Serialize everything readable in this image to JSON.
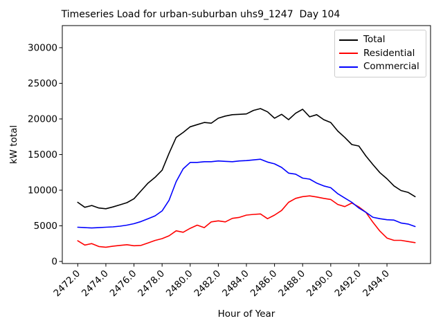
{
  "title": "Timeseries Load for urban-suburban uhs9_1247  Day 104",
  "axes": {
    "xlabel": "Hour of Year",
    "ylabel": "kW total"
  },
  "legend": {
    "entries": [
      {
        "label": "Total",
        "color": "#000000"
      },
      {
        "label": "Residential",
        "color": "#ff0000"
      },
      {
        "label": "Commercial",
        "color": "#0000ff"
      }
    ]
  },
  "chart_data": {
    "type": "line",
    "title": "Timeseries Load for urban-suburban uhs9_1247  Day 104",
    "xlabel": "Hour of Year",
    "ylabel": "kW total",
    "xlim": [
      2470.9,
      2497.1
    ],
    "ylim": [
      0,
      33100
    ],
    "grid": false,
    "legend_position": "upper right",
    "x_ticks": [
      2472,
      2474,
      2476,
      2478,
      2480,
      2482,
      2484,
      2486,
      2488,
      2490,
      2492,
      2494
    ],
    "x_tick_labels": [
      "2472.0",
      "2474.0",
      "2476.0",
      "2478.0",
      "2480.0",
      "2482.0",
      "2484.0",
      "2486.0",
      "2488.0",
      "2490.0",
      "2492.0",
      "2494.0"
    ],
    "y_ticks": [
      0,
      5000,
      10000,
      15000,
      20000,
      25000,
      30000
    ],
    "y_tick_labels": [
      "0",
      "5000",
      "10000",
      "15000",
      "20000",
      "25000",
      "30000"
    ],
    "x": [
      2472.0,
      2472.5,
      2473.0,
      2473.5,
      2474.0,
      2474.5,
      2475.0,
      2475.5,
      2476.0,
      2476.5,
      2477.0,
      2477.5,
      2478.0,
      2478.5,
      2479.0,
      2479.5,
      2480.0,
      2480.5,
      2481.0,
      2481.5,
      2482.0,
      2482.5,
      2483.0,
      2483.5,
      2484.0,
      2484.5,
      2485.0,
      2485.5,
      2486.0,
      2486.5,
      2487.0,
      2487.5,
      2488.0,
      2488.5,
      2489.0,
      2489.5,
      2490.0,
      2490.5,
      2491.0,
      2491.5,
      2492.0,
      2492.5,
      2493.0,
      2493.5,
      2494.0,
      2494.5,
      2495.0,
      2495.5,
      2496.0
    ],
    "series": [
      {
        "name": "Total",
        "color": "#000000",
        "values": [
          8300,
          7600,
          7850,
          7500,
          7400,
          7650,
          7950,
          8250,
          8800,
          9900,
          11000,
          11800,
          12800,
          15200,
          17400,
          18100,
          18900,
          19200,
          19500,
          19400,
          20100,
          20400,
          20600,
          20650,
          20700,
          21200,
          21450,
          21000,
          20100,
          20650,
          19900,
          20800,
          21350,
          20300,
          20600,
          19900,
          19500,
          18300,
          17400,
          16400,
          16200,
          14800,
          13600,
          12450,
          11600,
          10600,
          9950,
          9700,
          9100
        ]
      },
      {
        "name": "Residential",
        "color": "#ff0000",
        "values": [
          2900,
          2300,
          2500,
          2100,
          2000,
          2150,
          2250,
          2350,
          2200,
          2250,
          2600,
          2950,
          3200,
          3600,
          4300,
          4100,
          4650,
          5100,
          4750,
          5550,
          5700,
          5550,
          6050,
          6180,
          6500,
          6600,
          6670,
          6000,
          6500,
          7150,
          8300,
          8850,
          9100,
          9200,
          9050,
          8850,
          8700,
          8000,
          7700,
          8200,
          7650,
          6900,
          5500,
          4250,
          3280,
          2960,
          2960,
          2800,
          2640
        ]
      },
      {
        "name": "Commercial",
        "color": "#0000ff",
        "values": [
          4800,
          4750,
          4700,
          4750,
          4800,
          4850,
          4950,
          5100,
          5300,
          5600,
          6000,
          6400,
          7100,
          8600,
          11200,
          13000,
          13900,
          13900,
          14000,
          14000,
          14100,
          14050,
          14000,
          14100,
          14150,
          14250,
          14350,
          13950,
          13700,
          13200,
          12400,
          12250,
          11700,
          11550,
          11000,
          10600,
          10350,
          9500,
          8900,
          8300,
          7500,
          6900,
          6200,
          6000,
          5850,
          5800,
          5400,
          5250,
          4900
        ]
      }
    ]
  }
}
